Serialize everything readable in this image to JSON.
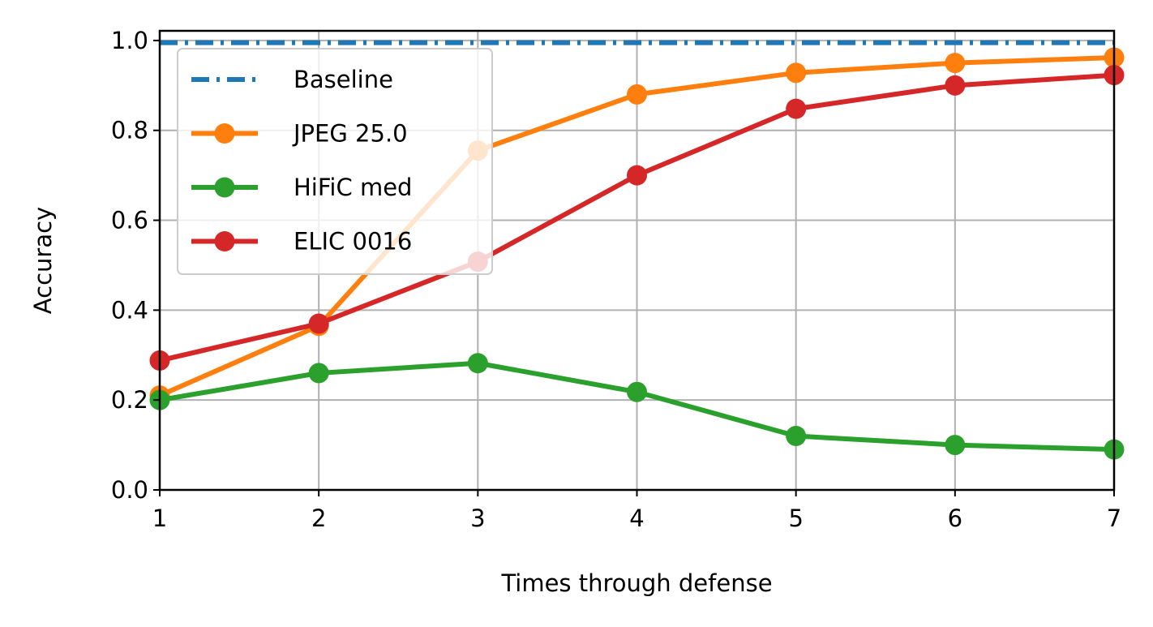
{
  "chart_data": {
    "type": "line",
    "title": "",
    "xlabel": "Times through defense",
    "ylabel": "Accuracy",
    "xlim": [
      1,
      7
    ],
    "ylim": [
      0.0,
      1.0
    ],
    "grid": true,
    "legend_position": "upper-left",
    "x_ticks": [
      1,
      2,
      3,
      4,
      5,
      6,
      7
    ],
    "x_tick_labels": [
      "1",
      "2",
      "3",
      "4",
      "5",
      "6",
      "7"
    ],
    "y_ticks": [
      0.0,
      0.2,
      0.4,
      0.6,
      0.8,
      1.0
    ],
    "y_tick_labels": [
      "0.0",
      "0.2",
      "0.4",
      "0.6",
      "0.8",
      "1.0"
    ],
    "baseline": {
      "name": "Baseline",
      "value": 0.995,
      "color": "#1f77b4",
      "style": "dashed"
    },
    "x": [
      1,
      2,
      3,
      4,
      5,
      6,
      7
    ],
    "series": [
      {
        "name": "JPEG 25.0",
        "color": "#ff7f0e",
        "values": [
          0.21,
          0.365,
          0.755,
          0.88,
          0.928,
          0.95,
          0.962
        ]
      },
      {
        "name": "HiFiC med",
        "color": "#2ca02c",
        "values": [
          0.2,
          0.26,
          0.282,
          0.218,
          0.12,
          0.1,
          0.09
        ]
      },
      {
        "name": "ELIC 0016",
        "color": "#d62728",
        "values": [
          0.288,
          0.37,
          0.508,
          0.7,
          0.848,
          0.9,
          0.923
        ]
      }
    ]
  }
}
